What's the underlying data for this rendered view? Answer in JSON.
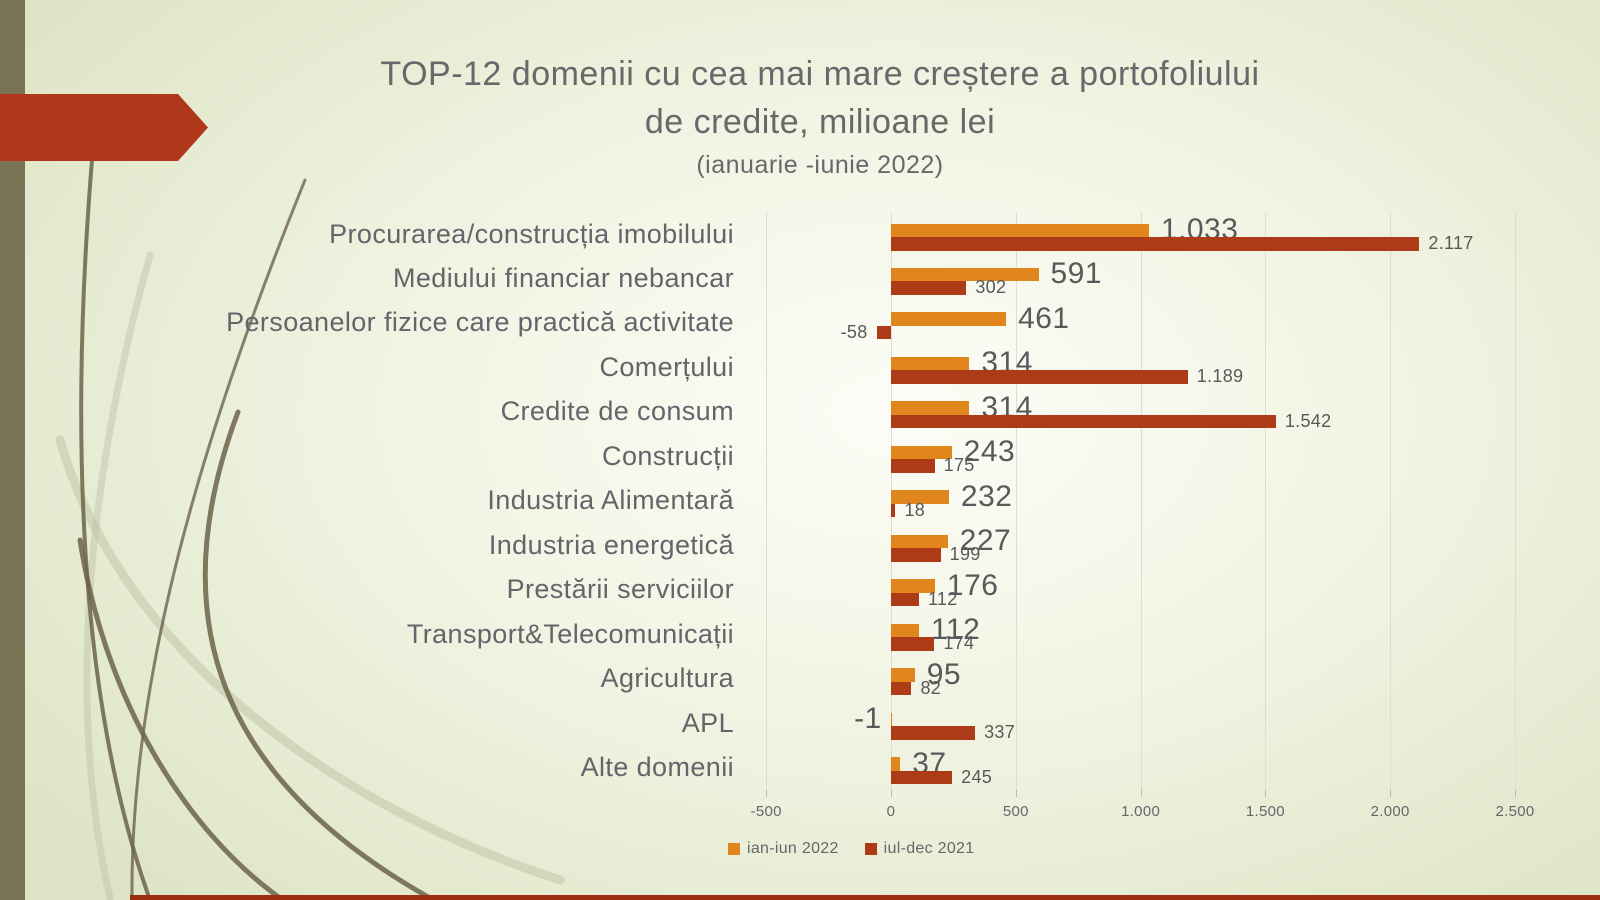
{
  "slide": {
    "title_line1": "TOP-12 domenii cu cea mai mare creștere a portofoliului",
    "title_line2": "de credite, milioane lei",
    "subtitle": "(ianuarie -iunie 2022)"
  },
  "chart_data": {
    "type": "bar",
    "orientation": "horizontal",
    "title": "TOP-12 domenii cu cea mai mare creștere a portofoliului de credite, milioane lei",
    "subtitle": "(ianuarie -iunie 2022)",
    "value_unit": "milioane lei",
    "grid": true,
    "categories": [
      "Procurarea/construcția imobilului",
      "Mediului financiar nebancar",
      "Persoanelor fizice care practică activitate",
      "Comerțului",
      "Credite de consum",
      "Construcții",
      "Industria Alimentară",
      "Industria energetică",
      "Prestării serviciilor",
      "Transport&Telecomunicații",
      "Agricultura",
      "APL",
      "Alte domenii"
    ],
    "series": [
      {
        "name": "ian-iun 2022",
        "color": "#e0861d",
        "values": [
          1033,
          591,
          461,
          314,
          314,
          243,
          232,
          227,
          176,
          112,
          95,
          -1,
          37
        ],
        "labels": [
          "1.033",
          "591",
          "461",
          "314",
          "314",
          "243",
          "232",
          "227",
          "176",
          "112",
          "95",
          "-1",
          "37"
        ]
      },
      {
        "name": "iul-dec 2021",
        "color": "#ae3b18",
        "values": [
          2117,
          302,
          -58,
          1189,
          1542,
          175,
          18,
          199,
          112,
          174,
          82,
          337,
          245
        ],
        "labels": [
          "2.117",
          "302",
          "-58",
          "1.189",
          "1.542",
          "175",
          "18",
          "199",
          "112",
          "174",
          "82",
          "337",
          "245"
        ]
      }
    ],
    "x_axis": {
      "min": -500,
      "max": 2500,
      "tick_values": [
        -500,
        0,
        500,
        1000,
        1500,
        2000,
        2500
      ],
      "tick_labels": [
        "-500",
        "0",
        "500",
        "1.000",
        "1.500",
        "2.000",
        "2.500"
      ]
    },
    "legend": {
      "position": "bottom",
      "entries": [
        "ian-iun 2022",
        "iul-dec 2021"
      ]
    }
  },
  "theme": {
    "background_center": "#fcfdf7",
    "background_edge": "#dde4c5",
    "left_stripe": "#7a7355",
    "arrow": "#b1371a",
    "grass_dark": "#6b6448",
    "grass_light": "#bdc1a3",
    "bottom_strip": "#9d2d10",
    "gridline": "#dbded2",
    "title_text": "#65696a",
    "label_text": "#62666a",
    "axis_text": "#63676a",
    "value_text": "#57595a"
  }
}
